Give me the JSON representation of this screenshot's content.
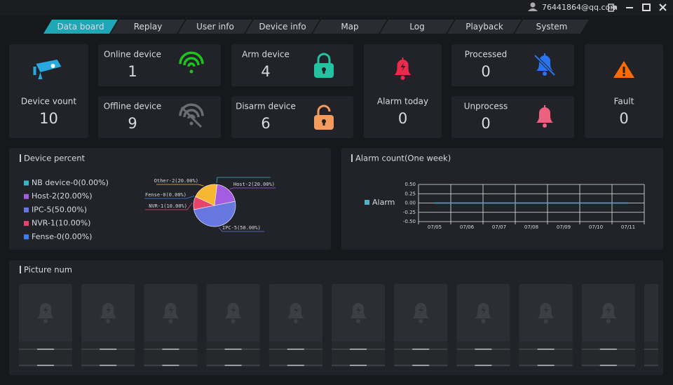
{
  "header": {
    "user": "76441864@qq.com"
  },
  "tabs": [
    "Data board",
    "Replay",
    "User info",
    "Device info",
    "Map",
    "Log",
    "Playback",
    "System"
  ],
  "cards": [
    {
      "label": "Device vount",
      "value": 10
    },
    {
      "label": "Online device",
      "value": 1
    },
    {
      "label": "Offline device",
      "value": 9
    },
    {
      "label": "Arm device",
      "value": 4
    },
    {
      "label": "Disarm device",
      "value": 6
    },
    {
      "label": "Alarm today",
      "value": 0
    },
    {
      "label": "Processed",
      "value": 0
    },
    {
      "label": "Unprocess",
      "value": 0
    },
    {
      "label": "Fault",
      "value": 0
    }
  ],
  "chart_data": [
    {
      "type": "pie",
      "title": "Device percent",
      "categories": [
        "NB device-0(0.00%)",
        "Host-2(20.00%)",
        "IPC-5(50.00%)",
        "NVR-1(10.00%)",
        "Fense-0(0.00%)",
        "Other-2(20.00%)"
      ],
      "values": [
        0,
        20,
        50,
        10,
        0,
        20
      ],
      "colors": [
        "#37b6c8",
        "#a45de2",
        "#6677e0",
        "#e8436a",
        "#3f7ef0",
        "#f7b731"
      ]
    },
    {
      "type": "line",
      "title": "Alarm count(One week)",
      "x": [
        "07/05",
        "07/06",
        "07/07",
        "07/08",
        "07/09",
        "07/10",
        "07/11"
      ],
      "series": [
        {
          "name": "Alarm",
          "color": "#4fb3c8",
          "values": [
            0,
            0,
            0,
            0,
            0,
            0,
            0
          ]
        }
      ],
      "ylim": [
        -0.5,
        0.5
      ],
      "yticks": [
        {
          "value": 0.5,
          "label": "0.50"
        },
        {
          "value": 0.25,
          "label": "0.25"
        },
        {
          "value": 0,
          "label": "0.00"
        },
        {
          "value": -0.25,
          "label": "-0.25"
        },
        {
          "value": -0.5,
          "label": "-0.50"
        }
      ],
      "grid": true
    }
  ],
  "pictures": {
    "title": "Picture num"
  }
}
